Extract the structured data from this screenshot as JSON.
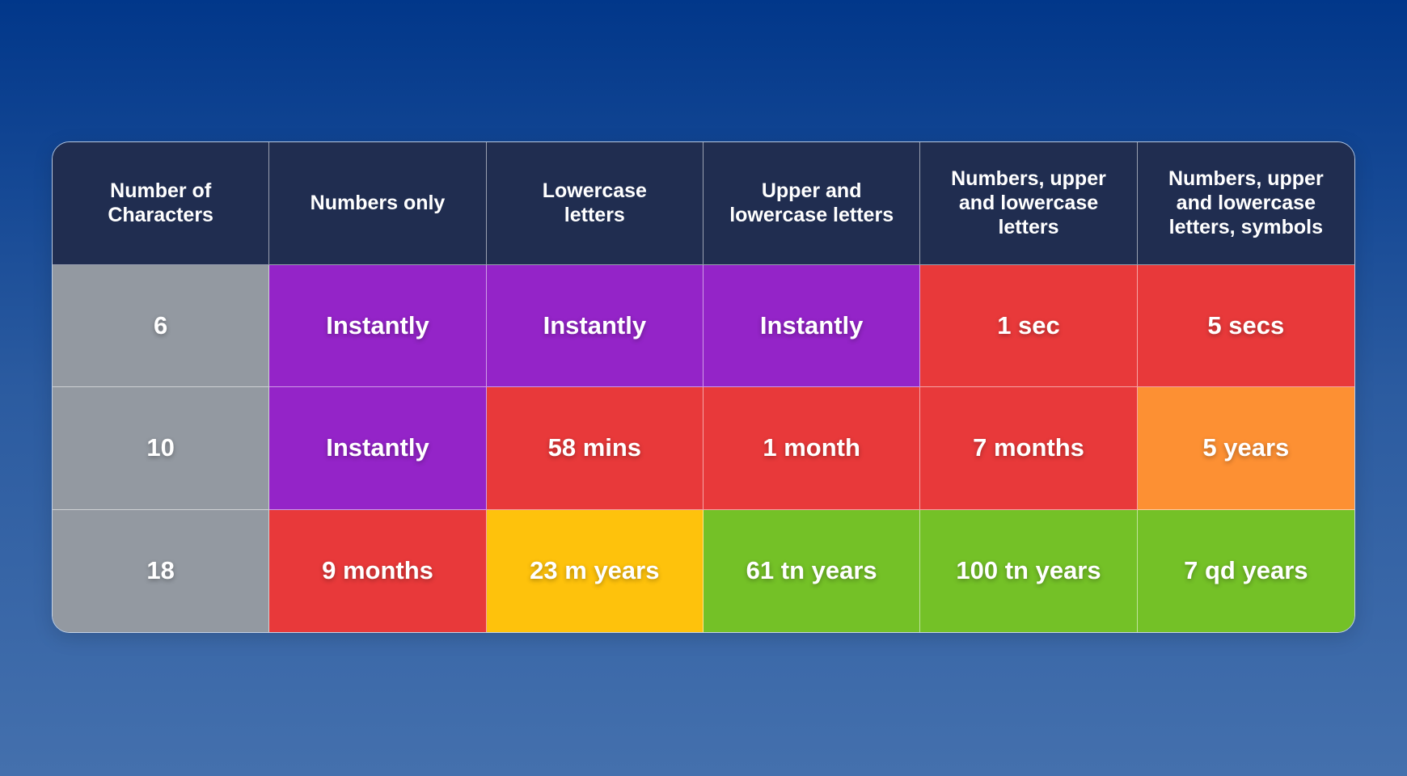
{
  "table": {
    "header": [
      "Number of Characters",
      "Numbers only",
      "Lowercase letters",
      "Upper and lowercase letters",
      "Numbers, upper and lowercase letters",
      "Numbers, upper and lowercase letters, symbols"
    ],
    "rows": [
      [
        "6",
        "Instantly",
        "Instantly",
        "Instantly",
        "1 sec",
        "5 secs"
      ],
      [
        "10",
        "Instantly",
        "58 mins",
        "1 month",
        "7 months",
        "5 years"
      ],
      [
        "18",
        "9 months",
        "23 m years",
        "61 tn years",
        "100 tn years",
        "7 qd years"
      ]
    ]
  }
}
